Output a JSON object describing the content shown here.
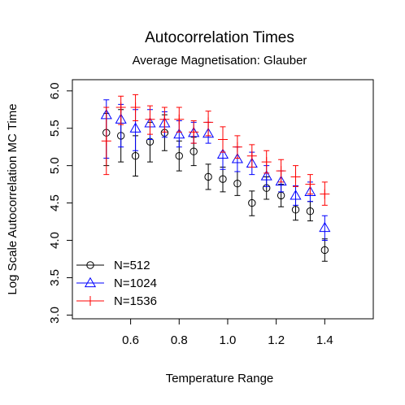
{
  "chart_data": {
    "type": "scatter",
    "title": "Autocorrelation Times",
    "subtitle": "Average Magnetisation: Glauber",
    "xlabel": "Temperature Range",
    "ylabel": "Log Scale Autocorrelation MC Time",
    "xlim": [
      0.36,
      1.6
    ],
    "ylim": [
      2.95,
      6.15
    ],
    "xticks": [
      "0.6",
      "0.8",
      "1.0",
      "1.2",
      "1.4"
    ],
    "yticks": [
      "3.0",
      "3.5",
      "4.0",
      "4.5",
      "5.0",
      "5.5",
      "6.0"
    ],
    "grid": false,
    "legend_position": "bottom-left",
    "series": [
      {
        "name": "N=512",
        "color": "#000000",
        "marker": "circle",
        "points": [
          {
            "x": 0.5,
            "y": 5.44,
            "lo": 5.0,
            "hi": 5.7
          },
          {
            "x": 0.56,
            "y": 5.4,
            "lo": 5.05,
            "hi": 5.75
          },
          {
            "x": 0.62,
            "y": 5.13,
            "lo": 4.86,
            "hi": 5.4
          },
          {
            "x": 0.68,
            "y": 5.32,
            "lo": 5.05,
            "hi": 5.58
          },
          {
            "x": 0.74,
            "y": 5.44,
            "lo": 5.2,
            "hi": 5.68
          },
          {
            "x": 0.8,
            "y": 5.13,
            "lo": 4.93,
            "hi": 5.33
          },
          {
            "x": 0.86,
            "y": 5.19,
            "lo": 5.0,
            "hi": 5.38
          },
          {
            "x": 0.92,
            "y": 4.85,
            "lo": 4.68,
            "hi": 5.02
          },
          {
            "x": 0.98,
            "y": 4.82,
            "lo": 4.65,
            "hi": 4.98
          },
          {
            "x": 1.04,
            "y": 4.76,
            "lo": 4.6,
            "hi": 4.92
          },
          {
            "x": 1.1,
            "y": 4.5,
            "lo": 4.33,
            "hi": 4.66
          },
          {
            "x": 1.16,
            "y": 4.7,
            "lo": 4.55,
            "hi": 4.85
          },
          {
            "x": 1.22,
            "y": 4.6,
            "lo": 4.45,
            "hi": 4.75
          },
          {
            "x": 1.28,
            "y": 4.41,
            "lo": 4.27,
            "hi": 4.55
          },
          {
            "x": 1.34,
            "y": 4.39,
            "lo": 4.26,
            "hi": 4.52
          },
          {
            "x": 1.4,
            "y": 3.87,
            "lo": 3.72,
            "hi": 4.02
          }
        ]
      },
      {
        "name": "N=1024",
        "color": "#0000ff",
        "marker": "triangle",
        "points": [
          {
            "x": 0.5,
            "y": 5.68,
            "lo": 5.1,
            "hi": 5.88
          },
          {
            "x": 0.56,
            "y": 5.62,
            "lo": 5.25,
            "hi": 5.82
          },
          {
            "x": 0.62,
            "y": 5.5,
            "lo": 5.2,
            "hi": 5.75
          },
          {
            "x": 0.68,
            "y": 5.57,
            "lo": 5.35,
            "hi": 5.75
          },
          {
            "x": 0.74,
            "y": 5.57,
            "lo": 5.38,
            "hi": 5.72
          },
          {
            "x": 0.8,
            "y": 5.42,
            "lo": 5.25,
            "hi": 5.6
          },
          {
            "x": 0.86,
            "y": 5.44,
            "lo": 5.3,
            "hi": 5.58
          },
          {
            "x": 0.92,
            "y": 5.43,
            "lo": 5.3,
            "hi": 5.58
          },
          {
            "x": 0.98,
            "y": 5.15,
            "lo": 4.95,
            "hi": 5.35
          },
          {
            "x": 1.04,
            "y": 5.09,
            "lo": 4.92,
            "hi": 5.25
          },
          {
            "x": 1.1,
            "y": 5.03,
            "lo": 4.88,
            "hi": 5.18
          },
          {
            "x": 1.16,
            "y": 4.86,
            "lo": 4.72,
            "hi": 5.0
          },
          {
            "x": 1.22,
            "y": 4.79,
            "lo": 4.65,
            "hi": 4.93
          },
          {
            "x": 1.28,
            "y": 4.6,
            "lo": 4.47,
            "hi": 4.73
          },
          {
            "x": 1.34,
            "y": 4.65,
            "lo": 4.52,
            "hi": 4.78
          },
          {
            "x": 1.4,
            "y": 4.17,
            "lo": 4.0,
            "hi": 4.33
          }
        ]
      },
      {
        "name": "N=1536",
        "color": "#ff0000",
        "marker": "plus",
        "points": [
          {
            "x": 0.5,
            "y": 5.33,
            "lo": 4.88,
            "hi": 5.78
          },
          {
            "x": 0.56,
            "y": 5.78,
            "lo": 5.55,
            "hi": 5.93
          },
          {
            "x": 0.62,
            "y": 5.78,
            "lo": 5.6,
            "hi": 5.95
          },
          {
            "x": 0.68,
            "y": 5.62,
            "lo": 5.42,
            "hi": 5.8
          },
          {
            "x": 0.74,
            "y": 5.62,
            "lo": 5.45,
            "hi": 5.78
          },
          {
            "x": 0.8,
            "y": 5.62,
            "lo": 5.45,
            "hi": 5.78
          },
          {
            "x": 0.86,
            "y": 5.45,
            "lo": 5.3,
            "hi": 5.6
          },
          {
            "x": 0.92,
            "y": 5.58,
            "lo": 5.4,
            "hi": 5.73
          },
          {
            "x": 0.98,
            "y": 5.35,
            "lo": 5.18,
            "hi": 5.52
          },
          {
            "x": 1.04,
            "y": 5.25,
            "lo": 5.1,
            "hi": 5.4
          },
          {
            "x": 1.1,
            "y": 5.13,
            "lo": 4.98,
            "hi": 5.28
          },
          {
            "x": 1.16,
            "y": 5.05,
            "lo": 4.9,
            "hi": 5.2
          },
          {
            "x": 1.22,
            "y": 4.93,
            "lo": 4.78,
            "hi": 5.08
          },
          {
            "x": 1.28,
            "y": 4.85,
            "lo": 4.72,
            "hi": 5.0
          },
          {
            "x": 1.34,
            "y": 4.75,
            "lo": 4.62,
            "hi": 4.88
          },
          {
            "x": 1.4,
            "y": 4.62,
            "lo": 4.47,
            "hi": 4.78
          }
        ]
      }
    ]
  }
}
